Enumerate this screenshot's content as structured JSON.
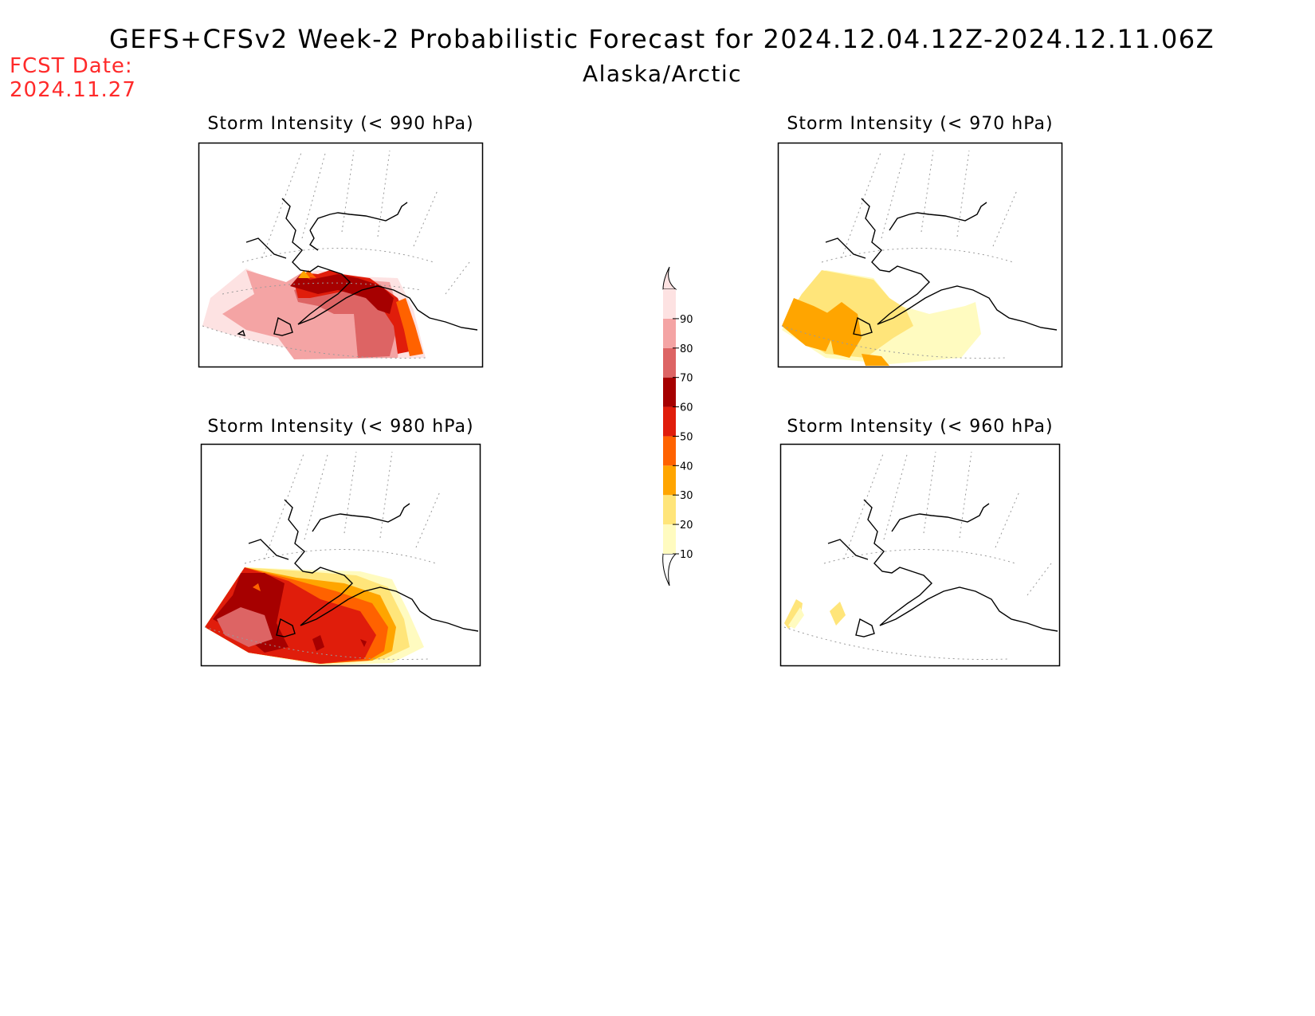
{
  "header": {
    "title": "GEFS+CFSv2 Week-2 Probabilistic Forecast for 2024.12.04.12Z-2024.12.11.06Z",
    "subtitle": "Alaska/Arctic",
    "fcst_label": "FCST Date:",
    "fcst_date": "2024.11.27"
  },
  "panels": [
    {
      "id": "p990",
      "title": "Storm Intensity (< 990 hPa)",
      "threshold_hPa": 990,
      "dominant_probability_percent": 80
    },
    {
      "id": "p970",
      "title": "Storm Intensity (< 970 hPa)",
      "threshold_hPa": 970,
      "dominant_probability_percent": 20
    },
    {
      "id": "p980",
      "title": "Storm Intensity (< 980 hPa)",
      "threshold_hPa": 980,
      "dominant_probability_percent": 60
    },
    {
      "id": "p960",
      "title": "Storm Intensity (< 960 hPa)",
      "threshold_hPa": 960,
      "dominant_probability_percent": 10
    }
  ],
  "colorbar": {
    "ticks": [
      "10",
      "20",
      "30",
      "40",
      "50",
      "60",
      "70",
      "80",
      "90"
    ],
    "colors": [
      "#fffbc0",
      "#ffe57a",
      "#ffa500",
      "#ff6200",
      "#e01d0b",
      "#a60000",
      "#dd6464",
      "#f4a4a4",
      "#fde2e2"
    ]
  }
}
